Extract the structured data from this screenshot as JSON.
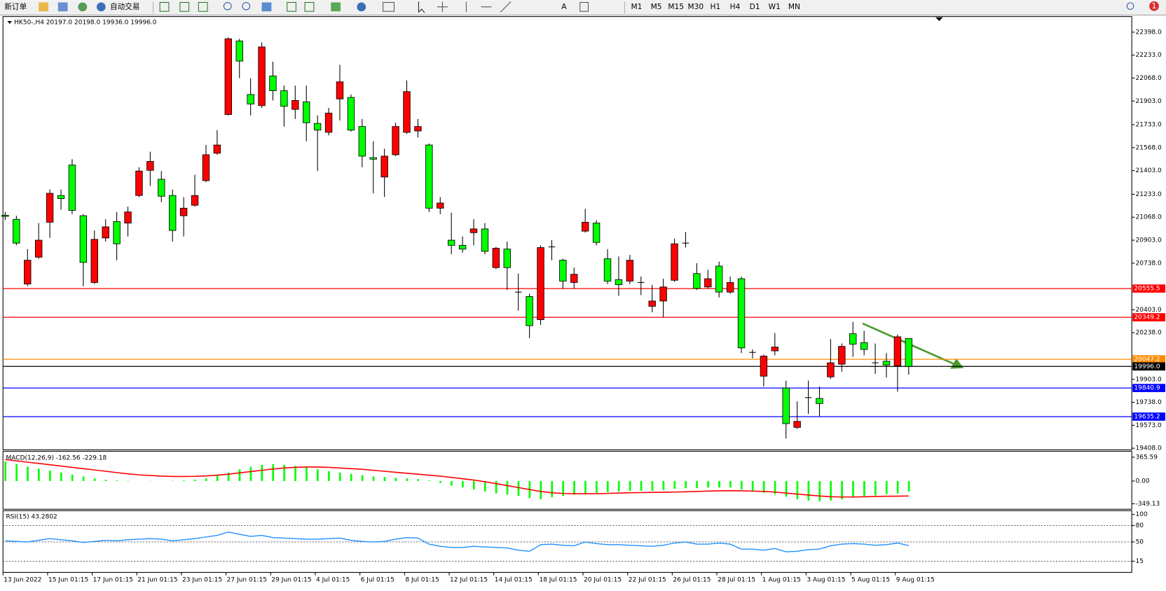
{
  "toolbar": {
    "new_order": "新订单",
    "auto_trading": "自动交易",
    "timeframes": [
      "M1",
      "M5",
      "M15",
      "M30",
      "H1",
      "H4",
      "D1",
      "W1",
      "MN"
    ],
    "alerts": "1"
  },
  "chart_data": [
    {
      "type": "candlestick",
      "title": "HK50-,H4  20197.0 20198.0 19936.0 19996.0",
      "categories": [
        "13 Jun 2022",
        null,
        null,
        null,
        "15 Jun 01:15",
        null,
        null,
        null,
        "17 Jun 01:15",
        null,
        null,
        null,
        "21 Jun 01:15",
        null,
        null,
        null,
        "23 Jun 01:15",
        null,
        null,
        null,
        "27 Jun 01:15",
        null,
        null,
        null,
        "29 Jun 01:15",
        null,
        null,
        null,
        "4 Jul 01:15",
        null,
        null,
        null,
        "6 Jul 01:15",
        null,
        null,
        null,
        "8 Jul 01:15",
        null,
        null,
        null,
        "12 Jul 01:15",
        null,
        null,
        null,
        "14 Jul 01:15",
        null,
        null,
        null,
        "18 Jul 01:15",
        null,
        null,
        null,
        "20 Jul 01:15",
        null,
        null,
        null,
        "22 Jul 01:15",
        null,
        null,
        null,
        "26 Jul 01:15",
        null,
        null,
        null,
        "28 Jul 01:15",
        null,
        null,
        null,
        "1 Aug 01:15",
        null,
        null,
        null,
        "3 Aug 01:15",
        null,
        null,
        null,
        "5 Aug 01:15",
        null,
        null,
        null,
        "9 Aug 01:15",
        null
      ],
      "open": [
        21082,
        21053,
        20588,
        20781,
        21032,
        21224,
        21443,
        21079,
        20599,
        20919,
        21037,
        21026,
        21224,
        21405,
        21341,
        21224,
        21079,
        21154,
        21331,
        21528,
        21806,
        22334,
        21950,
        21870,
        22083,
        21977,
        21843,
        21897,
        21742,
        21678,
        21918,
        21929,
        21720,
        21496,
        21357,
        21517,
        21678,
        21688,
        21587,
        21133,
        20903,
        20866,
        20957,
        20984,
        20706,
        20839,
        20530,
        20498,
        20332,
        20855,
        20759,
        20599,
        20968,
        21026,
        20770,
        20620,
        20609,
        20599,
        20428,
        20466,
        20615,
        20882,
        20663,
        20567,
        20717,
        20530,
        20626,
        20097,
        19926,
        20108,
        19841,
        19558,
        19772,
        19766,
        19921,
        20012,
        20231,
        20167,
        20022,
        20033,
        20001,
        20197
      ],
      "high": [
        21106,
        21079,
        20839,
        21026,
        21267,
        21267,
        21485,
        21090,
        20973,
        21053,
        21106,
        21144,
        21427,
        21539,
        21400,
        21267,
        21213,
        21373,
        21587,
        21694,
        22361,
        22350,
        22067,
        22324,
        22185,
        22014,
        22014,
        22014,
        21800,
        21854,
        22163,
        21950,
        21774,
        21614,
        21560,
        21747,
        22051,
        21774,
        21597,
        21213,
        21101,
        20930,
        21053,
        21026,
        20855,
        20893,
        20663,
        20519,
        20866,
        20903,
        20770,
        20706,
        21128,
        21047,
        20839,
        20786,
        20797,
        20642,
        20583,
        20626,
        20914,
        20962,
        20738,
        20690,
        20749,
        20642,
        20642,
        20118,
        20081,
        20236,
        19894,
        19745,
        19894,
        19852,
        20193,
        20161,
        20316,
        20252,
        20161,
        20092,
        20225,
        20198
      ],
      "low": [
        21047,
        20866,
        20572,
        20770,
        20919,
        21122,
        21090,
        20572,
        20588,
        20893,
        20759,
        20930,
        21213,
        21293,
        21176,
        20893,
        20930,
        21144,
        21320,
        21517,
        21800,
        22067,
        21800,
        21854,
        21907,
        21720,
        21774,
        21614,
        21400,
        21656,
        21763,
        21683,
        21427,
        21240,
        21213,
        21507,
        21667,
        21640,
        21106,
        21090,
        20802,
        20813,
        20866,
        20802,
        20695,
        20546,
        20396,
        20199,
        20294,
        20759,
        20556,
        20556,
        20957,
        20866,
        20588,
        20503,
        20588,
        20508,
        20385,
        20348,
        20604,
        20850,
        20546,
        20556,
        20492,
        20519,
        20092,
        20054,
        19852,
        20076,
        19478,
        19547,
        19654,
        19638,
        19905,
        19958,
        20065,
        20076,
        19942,
        19916,
        19814,
        19936
      ],
      "close": [
        21074,
        20882,
        20759,
        20903,
        21240,
        21202,
        21117,
        20743,
        20909,
        20999,
        20877,
        21106,
        21400,
        21469,
        21219,
        20973,
        21133,
        21224,
        21517,
        21587,
        22350,
        22190,
        21881,
        22292,
        21977,
        21865,
        21907,
        21747,
        21694,
        21816,
        22041,
        21694,
        21507,
        21485,
        21507,
        21720,
        21971,
        21720,
        21133,
        21170,
        20866,
        20839,
        20984,
        20823,
        20845,
        20706,
        20530,
        20289,
        20850,
        20855,
        20609,
        20658,
        21032,
        20887,
        20609,
        20583,
        20759,
        20599,
        20466,
        20567,
        20877,
        20882,
        20556,
        20626,
        20530,
        20599,
        20129,
        20097,
        20070,
        20135,
        19585,
        19601,
        19772,
        19729,
        20022,
        20140,
        20156,
        20118,
        20022,
        20006,
        20209,
        19996
      ],
      "up_color": "#ff0000",
      "down_color": "#00ff00",
      "ylim": [
        19397,
        22510
      ],
      "yticks": [
        {
          "value": 22398,
          "label": "22398.0"
        },
        {
          "value": 22233,
          "label": "22233.0"
        },
        {
          "value": 22068,
          "label": "22068.0"
        },
        {
          "value": 21903,
          "label": "21903.0"
        },
        {
          "value": 21733,
          "label": "21733.0"
        },
        {
          "value": 21568,
          "label": "21568.0"
        },
        {
          "value": 21403,
          "label": "21403.0"
        },
        {
          "value": 21233,
          "label": "21233.0"
        },
        {
          "value": 21068,
          "label": "21068.0"
        },
        {
          "value": 20903,
          "label": "20903.0"
        },
        {
          "value": 20738,
          "label": "20738.0"
        },
        {
          "value": 20403,
          "label": "20403.0"
        },
        {
          "value": 20238,
          "label": "20238.0"
        },
        {
          "value": 19903,
          "label": "19903.0"
        },
        {
          "value": 19738,
          "label": "19738.0"
        },
        {
          "value": 19573,
          "label": "19573.0"
        },
        {
          "value": 19408,
          "label": "19408.0"
        }
      ],
      "levels": [
        {
          "value": 20555.5,
          "color": "#ff0000"
        },
        {
          "value": 20349.2,
          "color": "#ff0000"
        },
        {
          "value": 20047.2,
          "color": "#ff8c00"
        },
        {
          "value": 19996,
          "label": "19996.0",
          "color": "#000000"
        },
        {
          "value": 19840.9,
          "color": "#0000ff"
        },
        {
          "value": 19635.2,
          "color": "#0000ff"
        }
      ]
    },
    {
      "type": "macd",
      "title": "MACD(12,26,9) -162.56 -229.18",
      "series": [
        {
          "color": "#00ff00",
          "values": [
            300,
            260,
            220,
            190,
            160,
            130,
            100,
            70,
            40,
            20,
            10,
            5,
            0,
            -5,
            0,
            5,
            10,
            20,
            40,
            80,
            130,
            180,
            220,
            250,
            260,
            250,
            230,
            210,
            180,
            150,
            130,
            110,
            90,
            70,
            60,
            50,
            40,
            30,
            10,
            -30,
            -70,
            -100,
            -130,
            -160,
            -190,
            -210,
            -230,
            -260,
            -280,
            -250,
            -230,
            -210,
            -190,
            -180,
            -170,
            -160,
            -150,
            -150,
            -150,
            -140,
            -120,
            -110,
            -110,
            -100,
            -100,
            -100,
            -130,
            -160,
            -180,
            -200,
            -240,
            -280,
            -300,
            -310,
            -300,
            -280,
            -250,
            -230,
            -220,
            -200,
            -190,
            -162.56
          ]
        },
        {
          "color": "#ff0000",
          "values": [
            330,
            310,
            290,
            270,
            250,
            230,
            210,
            190,
            170,
            150,
            130,
            110,
            95,
            85,
            75,
            70,
            70,
            72,
            78,
            90,
            105,
            125,
            145,
            165,
            185,
            200,
            210,
            215,
            215,
            210,
            200,
            190,
            180,
            165,
            150,
            135,
            120,
            105,
            90,
            75,
            55,
            35,
            15,
            -10,
            -40,
            -70,
            -100,
            -130,
            -160,
            -180,
            -190,
            -195,
            -195,
            -195,
            -190,
            -185,
            -180,
            -178,
            -175,
            -172,
            -170,
            -165,
            -160,
            -155,
            -150,
            -148,
            -150,
            -155,
            -160,
            -170,
            -185,
            -200,
            -215,
            -230,
            -240,
            -245,
            -245,
            -242,
            -238,
            -234,
            -232,
            -229.18
          ]
        }
      ],
      "ylim": [
        -433,
        457
      ],
      "yticks": [
        365.59,
        {
          "value": 0,
          "label": "0.00"
        },
        -349.13
      ]
    },
    {
      "type": "rsi",
      "title": "RSI(15) 43.2802",
      "color": "#1e90ff",
      "values": [
        52,
        51,
        50,
        53,
        56,
        54,
        52,
        49,
        51,
        53,
        52,
        54,
        55,
        56,
        55,
        52,
        54,
        56,
        59,
        62,
        68,
        64,
        60,
        62,
        58,
        57,
        56,
        55,
        55,
        56,
        57,
        53,
        51,
        50,
        51,
        55,
        58,
        57,
        46,
        42,
        40,
        40,
        42,
        41,
        40,
        39,
        35,
        33,
        45,
        46,
        44,
        43,
        50,
        47,
        45,
        45,
        44,
        43,
        42,
        44,
        48,
        50,
        46,
        46,
        48,
        46,
        37,
        37,
        35,
        38,
        32,
        33,
        36,
        37,
        43,
        46,
        47,
        46,
        44,
        45,
        48,
        43.2802
      ],
      "ylim": [
        -5.4,
        106.8
      ],
      "yticks": [
        100,
        80,
        50,
        15
      ],
      "levels": [
        80,
        50,
        15
      ]
    }
  ]
}
